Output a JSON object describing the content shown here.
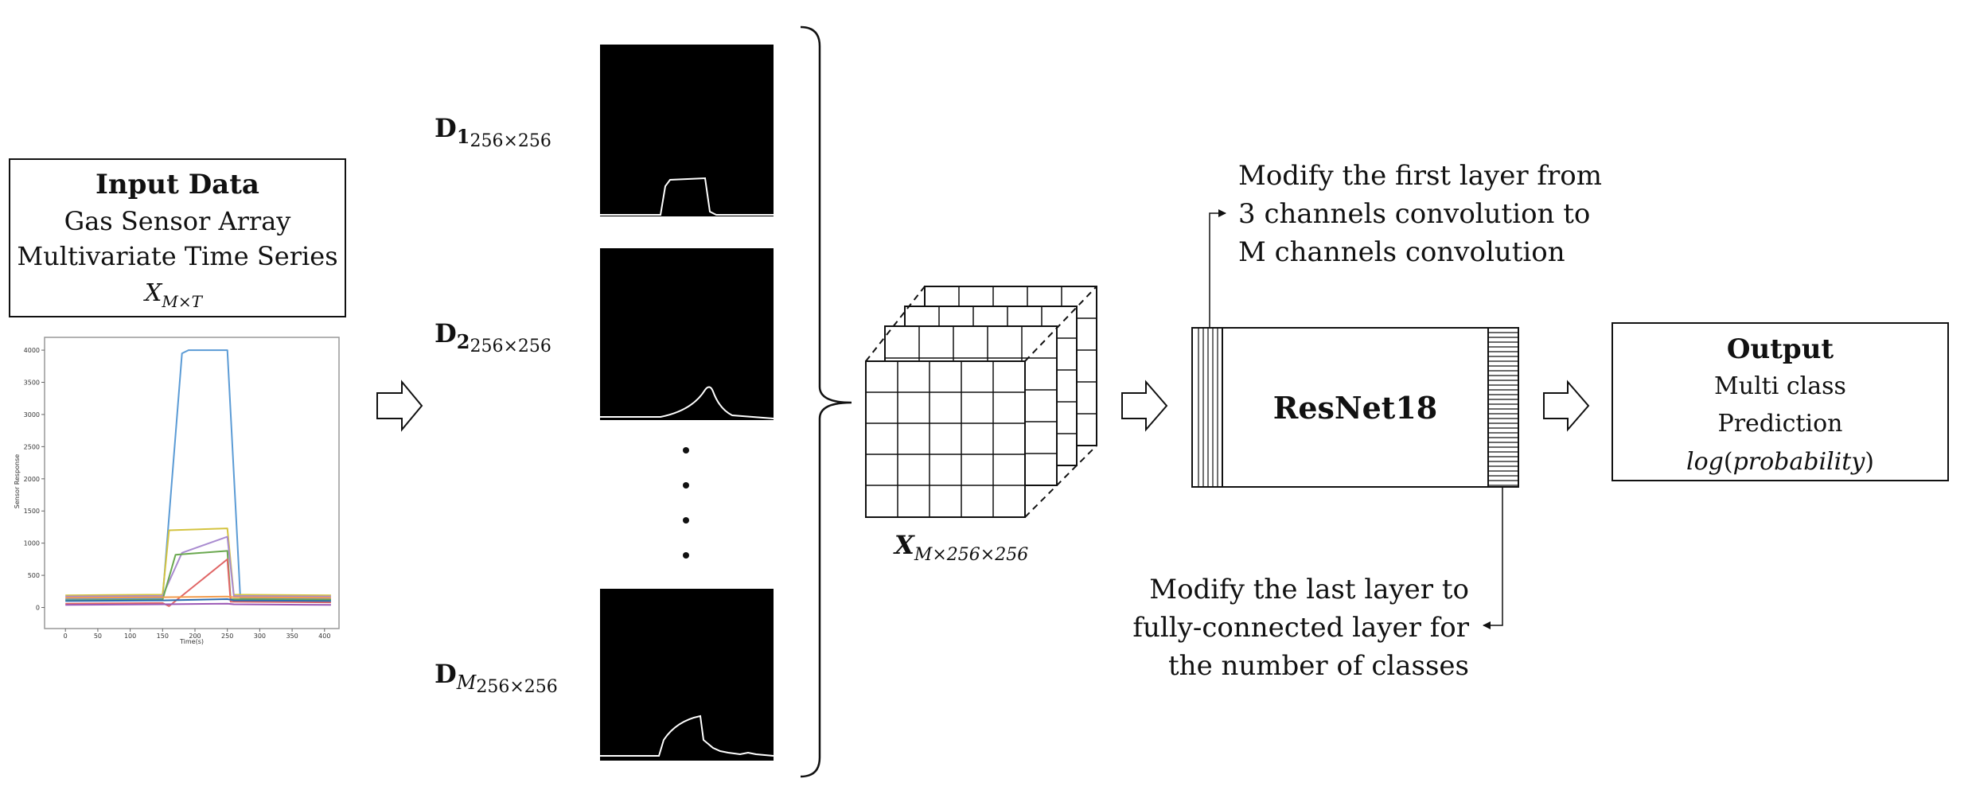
{
  "input_box": {
    "title": "Input Data",
    "line1": "Gas Sensor Array",
    "line2": "Multivariate Time Series",
    "symbol_base": "X",
    "symbol_sub": "M×T"
  },
  "sensor_plot": {
    "xlabel": "Time(s)",
    "ylabel": "Sensor Response",
    "x_ticks": [
      "0",
      "50",
      "100",
      "150",
      "200",
      "250",
      "300",
      "350",
      "400"
    ],
    "y_ticks": [
      "0",
      "500",
      "1000",
      "1500",
      "2000",
      "2500",
      "3000",
      "3500",
      "4000"
    ]
  },
  "chart_data": {
    "type": "line",
    "xlabel": "Time(s)",
    "ylabel": "Sensor Response",
    "xlim": [
      -15,
      415
    ],
    "ylim": [
      -80,
      4100
    ],
    "grid": false,
    "series": [
      {
        "color": "#5b9bd5",
        "x": [
          0,
          150,
          180,
          190,
          250,
          270,
          300,
          410
        ],
        "y": [
          130,
          140,
          3950,
          4000,
          4000,
          150,
          140,
          130
        ]
      },
      {
        "color": "#d4c340",
        "x": [
          0,
          150,
          160,
          250,
          260,
          410
        ],
        "y": [
          190,
          200,
          1200,
          1230,
          200,
          190
        ]
      },
      {
        "color": "#a98bd0",
        "x": [
          0,
          150,
          180,
          250,
          260,
          410
        ],
        "y": [
          170,
          180,
          850,
          1100,
          180,
          170
        ]
      },
      {
        "color": "#6aa84f",
        "x": [
          0,
          150,
          170,
          250,
          255,
          410
        ],
        "y": [
          110,
          120,
          820,
          880,
          130,
          120
        ]
      },
      {
        "color": "#e06666",
        "x": [
          0,
          150,
          160,
          250,
          255,
          410
        ],
        "y": [
          60,
          70,
          20,
          750,
          90,
          80
        ]
      },
      {
        "color": "#f39c4d",
        "x": [
          0,
          150,
          250,
          260,
          410
        ],
        "y": [
          150,
          160,
          170,
          160,
          150
        ]
      },
      {
        "color": "#2b6cb0",
        "x": [
          0,
          150,
          250,
          260,
          410
        ],
        "y": [
          100,
          110,
          130,
          110,
          100
        ]
      },
      {
        "color": "#9b59b6",
        "x": [
          0,
          150,
          250,
          260,
          410
        ],
        "y": [
          40,
          50,
          60,
          50,
          40
        ]
      }
    ]
  },
  "arrows": {
    "shape": "hollow-right-arrow"
  },
  "images": [
    {
      "label_base": "D",
      "label_index": "1",
      "label_size": "256×256",
      "curve": "plateau-high"
    },
    {
      "label_base": "D",
      "label_index": "2",
      "label_size": "256×256",
      "curve": "peak-low"
    },
    {
      "label_base": "D",
      "label_index": "M",
      "label_size": "256×256",
      "curve": "rise-step"
    }
  ],
  "ellipsis": "dots-vertical",
  "tensor": {
    "label_base": "X",
    "label_sub": "M×256×256"
  },
  "annotation_top": [
    "Modify the first layer from",
    "3 channels convolution to",
    "M channels convolution"
  ],
  "model": {
    "label": "ResNet18"
  },
  "annotation_bottom": [
    "Modify the last layer to",
    "fully-connected layer for",
    "the number of classes"
  ],
  "output_box": {
    "title": "Output",
    "line1": "Multi class",
    "line2": "Prediction",
    "formula_fn": "log",
    "formula_arg": "probability"
  }
}
